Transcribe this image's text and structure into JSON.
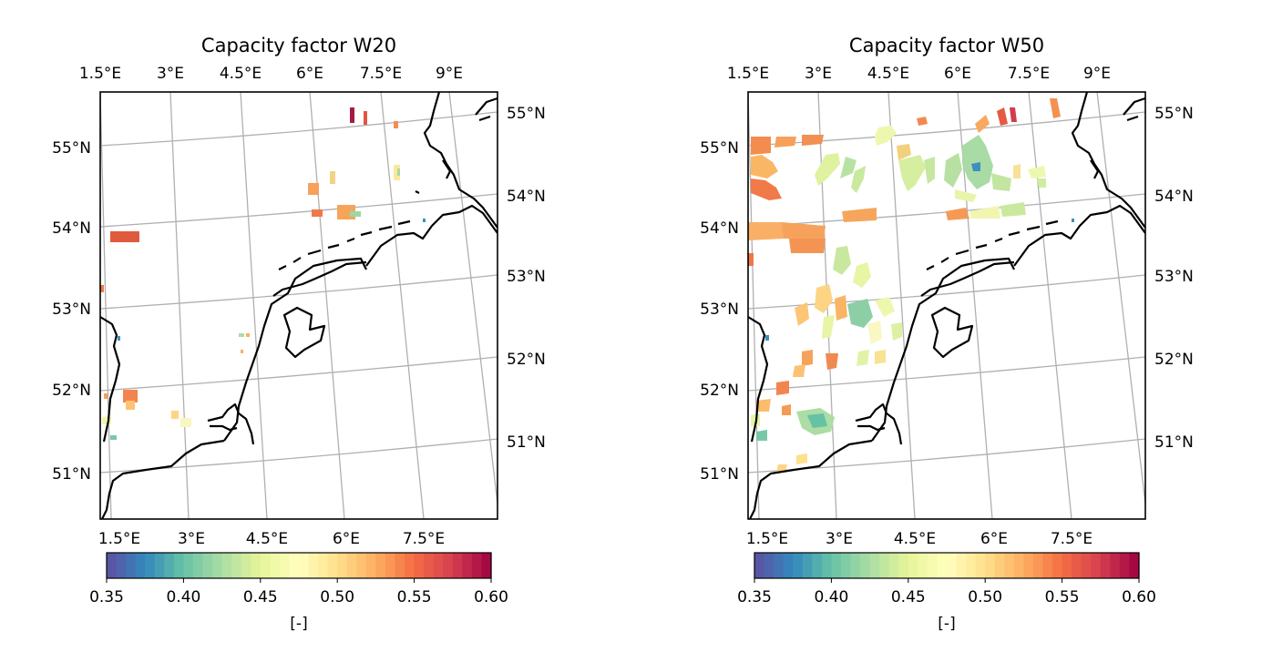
{
  "figure": {
    "panels": [
      {
        "title": "Capacity factor W20",
        "top_ticks": [
          "1.5°E",
          "3°E",
          "4.5°E",
          "6°E",
          "7.5°E",
          "9°E"
        ],
        "bottom_ticks": [
          "1.5°E",
          "3°E",
          "4.5°E",
          "6°E",
          "7.5°E"
        ],
        "left_ticks": [
          "55°N",
          "54°N",
          "53°N",
          "52°N",
          "51°N"
        ],
        "right_ticks": [
          "55°N",
          "54°N",
          "53°N",
          "52°N",
          "51°N"
        ],
        "colorbar": {
          "ticks": [
            "0.35",
            "0.40",
            "0.45",
            "0.50",
            "0.55",
            "0.60"
          ],
          "label": "[-]",
          "min": 0.35,
          "max": 0.6
        }
      },
      {
        "title": "Capacity factor W50",
        "top_ticks": [
          "1.5°E",
          "3°E",
          "4.5°E",
          "6°E",
          "7.5°E",
          "9°E"
        ],
        "bottom_ticks": [
          "1.5°E",
          "3°E",
          "4.5°E",
          "6°E",
          "7.5°E"
        ],
        "left_ticks": [
          "55°N",
          "54°N",
          "53°N",
          "52°N",
          "51°N"
        ],
        "right_ticks": [
          "55°N",
          "54°N",
          "53°N",
          "52°N",
          "51°N"
        ],
        "colorbar": {
          "ticks": [
            "0.35",
            "0.40",
            "0.45",
            "0.50",
            "0.55",
            "0.60"
          ],
          "label": "[-]",
          "min": 0.35,
          "max": 0.6
        }
      }
    ],
    "colormap": "Spectral_r",
    "colormap_stops": [
      "#5e4fa2",
      "#3288bd",
      "#66c2a5",
      "#abdda4",
      "#e6f598",
      "#ffffbf",
      "#fee08b",
      "#fdae61",
      "#f46d43",
      "#d53e4f",
      "#9e0142"
    ]
  }
}
